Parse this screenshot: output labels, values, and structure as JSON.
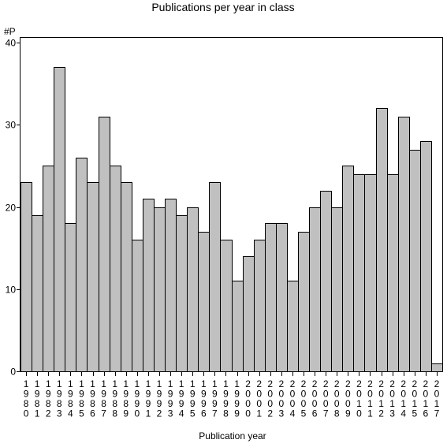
{
  "chart_data": {
    "type": "bar",
    "title": "Publications per year in class",
    "ylabel": "#P",
    "xlabel": "Publication year",
    "ylim": [
      0,
      40
    ],
    "yticks": [
      0,
      10,
      20,
      30,
      40
    ],
    "grid": false,
    "categories": [
      "1980",
      "1981",
      "1982",
      "1983",
      "1984",
      "1985",
      "1986",
      "1987",
      "1988",
      "1989",
      "1990",
      "1991",
      "1992",
      "1993",
      "1994",
      "1995",
      "1996",
      "1997",
      "1998",
      "1999",
      "2000",
      "2001",
      "2002",
      "2003",
      "2004",
      "2005",
      "2006",
      "2007",
      "2008",
      "2009",
      "2010",
      "2011",
      "2012",
      "2013",
      "2014",
      "2015",
      "2016",
      "2017"
    ],
    "values": [
      23,
      19,
      25,
      37,
      18,
      26,
      23,
      31,
      25,
      23,
      16,
      21,
      20,
      21,
      19,
      20,
      17,
      23,
      16,
      11,
      14,
      16,
      18,
      18,
      11,
      17,
      20,
      22,
      20,
      25,
      24,
      24,
      32,
      24,
      31,
      27,
      28,
      1
    ],
    "bar_color": "#c0c0c0",
    "bar_edge_color": "#000000"
  }
}
